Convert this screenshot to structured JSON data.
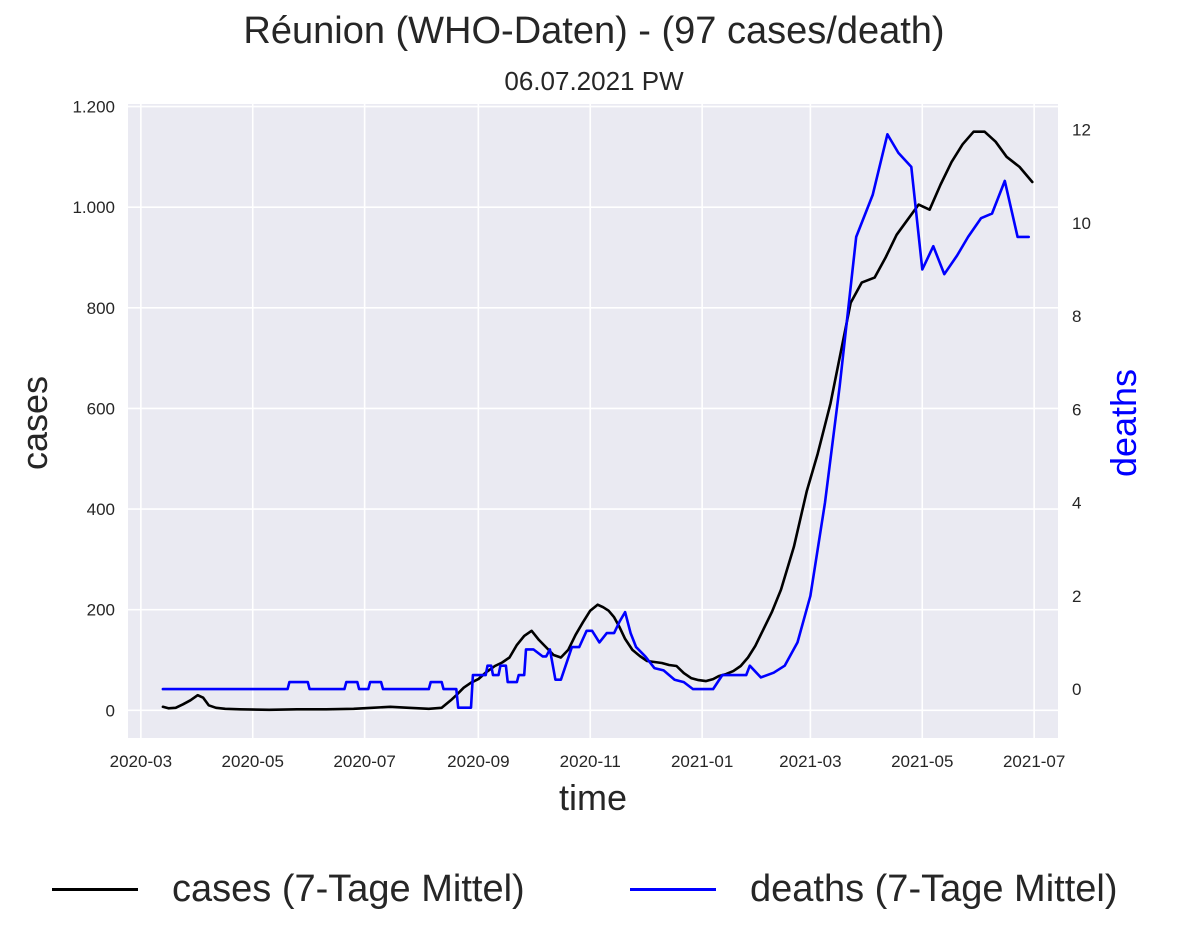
{
  "chart_data": {
    "type": "line",
    "title": "Réunion (WHO-Daten) - (97 cases/death)",
    "subtitle": "06.07.2021 PW",
    "xlabel": "time",
    "ylabel": "cases",
    "y2label": "deaths",
    "x_range": [
      "2020-02-23",
      "2021-07-14"
    ],
    "ylim": [
      -55,
      1205
    ],
    "y2lim": [
      -1.05,
      12.55
    ],
    "x_ticks": [
      "2020-03",
      "2020-05",
      "2020-07",
      "2020-09",
      "2020-11",
      "2021-01",
      "2021-03",
      "2021-05",
      "2021-07"
    ],
    "y_ticks": [
      0,
      200,
      400,
      600,
      800,
      1000,
      1200
    ],
    "y_tick_labels": [
      "0",
      "200",
      "400",
      "600",
      "800",
      "1.000",
      "1.200"
    ],
    "y2_ticks": [
      0,
      2,
      4,
      6,
      8,
      10,
      12
    ],
    "y2_tick_labels": [
      "0",
      "2",
      "4",
      "6",
      "8",
      "10",
      "12"
    ],
    "grid": true,
    "legend_position": "bottom",
    "series": [
      {
        "name": "cases (7-Tage Mittel)",
        "axis": "left",
        "color": "#000000",
        "x": [
          "2020-03-13",
          "2020-03-16",
          "2020-03-20",
          "2020-03-24",
          "2020-03-28",
          "2020-04-01",
          "2020-04-04",
          "2020-04-07",
          "2020-04-11",
          "2020-04-16",
          "2020-04-24",
          "2020-05-10",
          "2020-05-25",
          "2020-06-10",
          "2020-06-25",
          "2020-07-05",
          "2020-07-15",
          "2020-07-25",
          "2020-08-05",
          "2020-08-12",
          "2020-08-17",
          "2020-08-20",
          "2020-08-24",
          "2020-08-28",
          "2020-09-01",
          "2020-09-05",
          "2020-09-10",
          "2020-09-14",
          "2020-09-18",
          "2020-09-22",
          "2020-09-26",
          "2020-09-30",
          "2020-10-04",
          "2020-10-08",
          "2020-10-12",
          "2020-10-16",
          "2020-10-20",
          "2020-10-24",
          "2020-10-28",
          "2020-11-01",
          "2020-11-05",
          "2020-11-08",
          "2020-11-11",
          "2020-11-14",
          "2020-11-17",
          "2020-11-20",
          "2020-11-24",
          "2020-11-28",
          "2020-12-02",
          "2020-12-06",
          "2020-12-10",
          "2020-12-14",
          "2020-12-18",
          "2020-12-22",
          "2020-12-26",
          "2020-12-30",
          "2021-01-03",
          "2021-01-07",
          "2021-01-10",
          "2021-01-14",
          "2021-01-18",
          "2021-01-22",
          "2021-01-26",
          "2021-01-30",
          "2021-02-03",
          "2021-02-08",
          "2021-02-13",
          "2021-02-20",
          "2021-02-27",
          "2021-03-05",
          "2021-03-12",
          "2021-03-18",
          "2021-03-23",
          "2021-03-29",
          "2021-04-05",
          "2021-04-11",
          "2021-04-17",
          "2021-04-23",
          "2021-04-29",
          "2021-05-05",
          "2021-05-11",
          "2021-05-17",
          "2021-05-23",
          "2021-05-29",
          "2021-06-04",
          "2021-06-10",
          "2021-06-16",
          "2021-06-23",
          "2021-06-30"
        ],
        "values": [
          7,
          4,
          5,
          12,
          20,
          30,
          25,
          10,
          5,
          3,
          2,
          1,
          2,
          2,
          3,
          5,
          7,
          5,
          3,
          5,
          20,
          30,
          45,
          55,
          62,
          75,
          88,
          95,
          105,
          130,
          148,
          158,
          140,
          125,
          110,
          105,
          120,
          150,
          175,
          198,
          210,
          205,
          198,
          185,
          165,
          142,
          120,
          108,
          98,
          96,
          94,
          90,
          88,
          74,
          64,
          60,
          58,
          62,
          68,
          72,
          78,
          88,
          105,
          128,
          158,
          195,
          240,
          325,
          435,
          510,
          610,
          720,
          810,
          850,
          860,
          900,
          945,
          975,
          1005,
          995,
          1045,
          1090,
          1125,
          1150,
          1150,
          1130,
          1100,
          1080,
          1050
        ]
      },
      {
        "name": "deaths (7-Tage Mittel)",
        "axis": "right",
        "color": "#0000ff",
        "x": [
          "2020-03-13",
          "2020-05-20",
          "2020-05-21",
          "2020-05-31",
          "2020-06-01",
          "2020-06-20",
          "2020-06-21",
          "2020-06-27",
          "2020-06-28",
          "2020-07-03",
          "2020-07-04",
          "2020-07-10",
          "2020-07-11",
          "2020-08-05",
          "2020-08-06",
          "2020-08-12",
          "2020-08-13",
          "2020-08-20",
          "2020-08-21",
          "2020-08-22",
          "2020-08-28",
          "2020-08-29",
          "2020-08-31",
          "2020-09-01",
          "2020-09-05",
          "2020-09-06",
          "2020-09-08",
          "2020-09-09",
          "2020-09-12",
          "2020-09-13",
          "2020-09-16",
          "2020-09-17",
          "2020-09-22",
          "2020-09-23",
          "2020-09-26",
          "2020-09-27",
          "2020-10-01",
          "2020-10-06",
          "2020-10-08",
          "2020-10-10",
          "2020-10-13",
          "2020-10-16",
          "2020-10-22",
          "2020-10-26",
          "2020-10-30",
          "2020-11-02",
          "2020-11-06",
          "2020-11-10",
          "2020-11-14",
          "2020-11-17",
          "2020-11-20",
          "2020-11-23",
          "2020-11-26",
          "2020-12-01",
          "2020-12-06",
          "2020-12-11",
          "2020-12-17",
          "2020-12-22",
          "2020-12-27",
          "2021-01-02",
          "2021-01-07",
          "2021-01-12",
          "2021-01-18",
          "2021-01-22",
          "2021-01-25",
          "2021-01-27",
          "2021-02-02",
          "2021-02-09",
          "2021-02-15",
          "2021-02-22",
          "2021-03-01",
          "2021-03-09",
          "2021-03-17",
          "2021-03-26",
          "2021-04-04",
          "2021-04-12",
          "2021-04-18",
          "2021-04-25",
          "2021-05-01",
          "2021-05-07",
          "2021-05-13",
          "2021-05-20",
          "2021-05-26",
          "2021-06-02",
          "2021-06-08",
          "2021-06-15",
          "2021-06-22",
          "2021-06-28"
        ],
        "values": [
          0,
          0,
          0.15,
          0.15,
          0,
          0,
          0.15,
          0.15,
          0,
          0,
          0.15,
          0.15,
          0,
          0,
          0.15,
          0.15,
          0,
          0,
          -0.4,
          -0.4,
          -0.4,
          0.3,
          0.3,
          0.3,
          0.3,
          0.5,
          0.5,
          0.3,
          0.3,
          0.5,
          0.5,
          0.15,
          0.15,
          0.3,
          0.3,
          0.85,
          0.85,
          0.7,
          0.7,
          0.85,
          0.2,
          0.2,
          0.9,
          0.9,
          1.25,
          1.25,
          1.0,
          1.2,
          1.2,
          1.45,
          1.65,
          1.2,
          0.9,
          0.7,
          0.45,
          0.4,
          0.2,
          0.15,
          0,
          0,
          0,
          0.3,
          0.3,
          0.3,
          0.3,
          0.5,
          0.25,
          0.35,
          0.5,
          1.0,
          2.0,
          4.0,
          6.5,
          9.7,
          10.6,
          11.9,
          11.5,
          11.2,
          9.0,
          9.5,
          8.9,
          9.3,
          9.7,
          10.1,
          10.2,
          10.9,
          9.7,
          9.7
        ]
      }
    ]
  }
}
